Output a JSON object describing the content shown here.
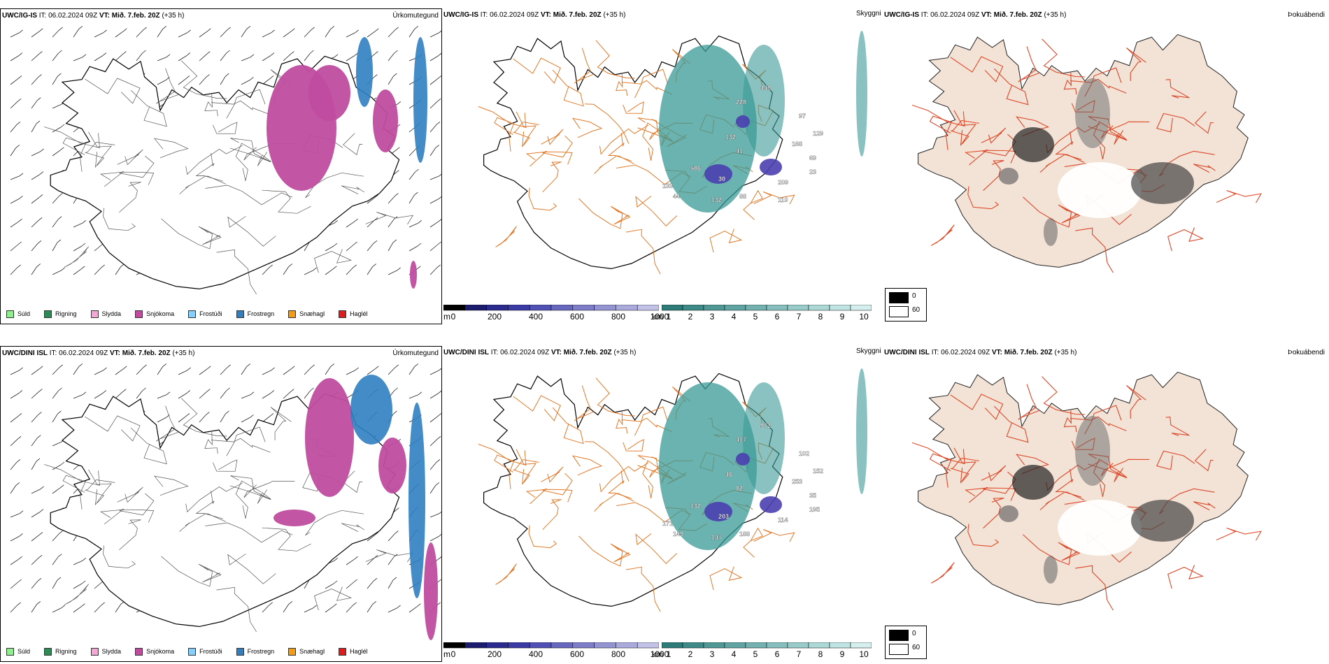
{
  "rows": [
    {
      "model": "UWC/IG-IS",
      "init_label": "IT:",
      "init_time": "06.02.2024 09Z",
      "valid_label": "VT:",
      "valid_time": "Mið. 7.feb. 20Z",
      "lead": "(+35 h)",
      "panels": {
        "precip_title": "Úrkomutegund",
        "cloud_title": "Skyggni",
        "fog_title": "Þokuábendi"
      },
      "visibility_labels": [
        "440",
        "228",
        "97",
        "132",
        "41",
        "129",
        "168",
        "30",
        "69",
        "506",
        "23",
        "133",
        "209",
        "44",
        "132",
        "88",
        "110"
      ]
    },
    {
      "model": "UWC/DINI ISL",
      "init_label": "IT:",
      "init_time": "06.02.2024 09Z",
      "valid_label": "VT:",
      "valid_time": "Mið. 7.feb. 20Z",
      "lead": "(+35 h)",
      "panels": {
        "precip_title": "Úrkomutegund",
        "cloud_title": "Skyggni",
        "fog_title": "Þokuábendi"
      },
      "visibility_labels": [
        "972",
        "417",
        "102",
        "46",
        "82",
        "152",
        "253",
        "203",
        "35",
        "132",
        "195",
        "171",
        "114",
        "149",
        "147",
        "188"
      ]
    }
  ],
  "precip_legend": [
    {
      "label": "Súld",
      "color": "#90ee90"
    },
    {
      "label": "Rigning",
      "color": "#2e8b57"
    },
    {
      "label": "Slydda",
      "color": "#f4a6d7"
    },
    {
      "label": "Snjókoma",
      "color": "#c04ca0"
    },
    {
      "label": "Frostúði",
      "color": "#87cefa"
    },
    {
      "label": "Frostregn",
      "color": "#2f7fc1"
    },
    {
      "label": "Snæhagl",
      "color": "#f39c12"
    },
    {
      "label": "Haglél",
      "color": "#e31a1c"
    }
  ],
  "height_bar": {
    "unit": "m",
    "ticks": [
      "0",
      "200",
      "400",
      "600",
      "800",
      "1000"
    ],
    "colors": [
      "#000000",
      "#1c1c6e",
      "#2b2b8f",
      "#3b3ba6",
      "#5151b5",
      "#6767bf",
      "#7d7dc9",
      "#9494d3",
      "#aaaadd",
      "#c2c2e8"
    ]
  },
  "km_bar": {
    "unit": "km",
    "ticks": [
      "1",
      "2",
      "3",
      "4",
      "5",
      "6",
      "7",
      "8",
      "9",
      "10"
    ],
    "colors": [
      "#2d7c7a",
      "#3e8a88",
      "#4f9896",
      "#60a5a3",
      "#73b2b0",
      "#86bfbd",
      "#99cbca",
      "#acd8d6",
      "#bfe4e3",
      "#d4efee"
    ]
  },
  "fog_legend": {
    "ticks": [
      "0",
      "60"
    ],
    "colors": [
      "#000000",
      "#ffffff"
    ]
  },
  "colors": {
    "land": "#f3e2d6",
    "coast": "#000000",
    "roads": "#e07a2a",
    "fog_roads": "#e04d2a",
    "rivers": "#7a8fe6",
    "teal": "#3a9a96",
    "purple": "#4a3fb0",
    "snow": "#c04ca0",
    "frost": "#2f7fc1"
  }
}
